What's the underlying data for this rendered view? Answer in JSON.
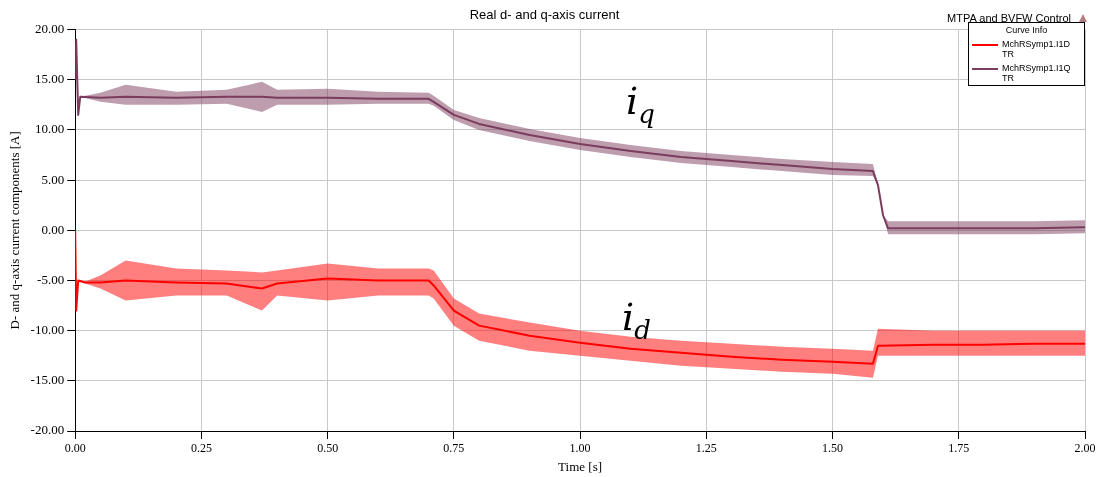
{
  "chart_data": {
    "type": "line",
    "title": "Real d- and q-axis current",
    "xlabel": "Time [s]",
    "ylabel": "D- and q-axis current components [A]",
    "legend_title": "Curve Info",
    "xlim": [
      0,
      2
    ],
    "xticks": [
      {
        "value": 0,
        "label": "0.00"
      },
      {
        "value": 0.25,
        "label": "0.25"
      },
      {
        "value": 0.5,
        "label": "0.50"
      },
      {
        "value": 0.75,
        "label": "0.75"
      },
      {
        "value": 1,
        "label": "1.00"
      },
      {
        "value": 1.25,
        "label": "1.25"
      },
      {
        "value": 1.5,
        "label": "1.50"
      },
      {
        "value": 1.75,
        "label": "1.75"
      },
      {
        "value": 2,
        "label": "2.00"
      }
    ],
    "ylim": [
      -20,
      20
    ],
    "yticks": [
      {
        "value": -20,
        "label": "-20.00"
      },
      {
        "value": -15,
        "label": "-15.00"
      },
      {
        "value": -10,
        "label": "-10.00"
      },
      {
        "value": -5,
        "label": "-5.00"
      },
      {
        "value": 0,
        "label": "0.00"
      },
      {
        "value": 5,
        "label": "5.00"
      },
      {
        "value": 10,
        "label": "10.00"
      },
      {
        "value": 15,
        "label": "15.00"
      },
      {
        "value": 20,
        "label": "20.00"
      }
    ],
    "grid": true,
    "legend": "top right",
    "marker": "none",
    "line_style": "solid",
    "series": [
      {
        "name": "MchRSymp1.I1D TR",
        "color": "#ff0000",
        "x": [
          0,
          0.002,
          0.006,
          0.02,
          0.05,
          0.1,
          0.2,
          0.3,
          0.37,
          0.4,
          0.5,
          0.6,
          0.7,
          0.71,
          0.75,
          0.8,
          0.9,
          1.0,
          1.1,
          1.2,
          1.3,
          1.4,
          1.5,
          1.58,
          1.59,
          1.7,
          1.8,
          1.9,
          2.0
        ],
        "values": [
          0,
          -8,
          -5,
          -5.2,
          -5.2,
          -5,
          -5.2,
          -5.3,
          -5.8,
          -5.3,
          -4.8,
          -5,
          -5,
          -5.5,
          -8,
          -9.5,
          -10.5,
          -11.2,
          -11.8,
          -12.2,
          -12.6,
          -12.9,
          -13.1,
          -13.3,
          -11.5,
          -11.4,
          -11.4,
          -11.3,
          -11.3
        ],
        "lower": [
          0,
          -8,
          -5,
          -5.3,
          -5.8,
          -7,
          -6.5,
          -6.5,
          -8,
          -6.5,
          -7,
          -6.5,
          -6.5,
          -6.8,
          -9.5,
          -11,
          -12,
          -12.5,
          -13,
          -13.5,
          -13.8,
          -14.1,
          -14.3,
          -14.7,
          -12.5,
          -12.5,
          -12.5,
          -12.5,
          -12.5
        ],
        "upper": [
          0,
          -8,
          -5,
          -5.1,
          -4.5,
          -3,
          -3.8,
          -4,
          -4.2,
          -4,
          -3.3,
          -3.8,
          -3.8,
          -4,
          -6.8,
          -8.3,
          -9.2,
          -10,
          -10.6,
          -11,
          -11.3,
          -11.6,
          -11.8,
          -12,
          -9.8,
          -10,
          -10,
          -10,
          -10
        ]
      },
      {
        "name": "MchRSymp1.I1Q TR",
        "color": "#7b3c5e",
        "x": [
          0,
          0.002,
          0.006,
          0.01,
          0.05,
          0.1,
          0.2,
          0.3,
          0.37,
          0.4,
          0.5,
          0.6,
          0.7,
          0.71,
          0.75,
          0.8,
          0.9,
          1.0,
          1.1,
          1.2,
          1.3,
          1.4,
          1.5,
          1.58,
          1.59,
          1.6,
          1.61,
          1.7,
          1.8,
          1.9,
          2.0
        ],
        "values": [
          15,
          19,
          11.5,
          13.3,
          13.2,
          13.3,
          13.2,
          13.3,
          13.3,
          13.2,
          13.2,
          13.1,
          13.1,
          12.8,
          11.5,
          10.6,
          9.5,
          8.6,
          7.9,
          7.3,
          6.9,
          6.5,
          6.1,
          5.9,
          4.5,
          1.5,
          0.2,
          0.2,
          0.2,
          0.2,
          0.3
        ],
        "lower": [
          15,
          19,
          11.5,
          13.3,
          12.8,
          12.5,
          12.5,
          12.6,
          11.8,
          12.5,
          12.5,
          12.6,
          12.6,
          12.4,
          11,
          10,
          8.9,
          8,
          7.3,
          6.7,
          6.3,
          5.9,
          5.5,
          5.4,
          4.5,
          1.5,
          -0.4,
          -0.4,
          -0.4,
          -0.4,
          -0.3
        ],
        "upper": [
          15,
          19,
          11.5,
          13.3,
          13.7,
          14.5,
          13.8,
          14,
          14.8,
          14,
          14.1,
          13.8,
          13.7,
          13.4,
          12,
          11.2,
          10.1,
          9.2,
          8.5,
          7.9,
          7.5,
          7.1,
          6.8,
          6.6,
          4.5,
          1.5,
          0.9,
          0.9,
          0.9,
          0.9,
          1
        ]
      }
    ],
    "annotations": [
      "MTPA and BVFW Control",
      "i$_{q}$",
      "i$_{d}$"
    ]
  }
}
